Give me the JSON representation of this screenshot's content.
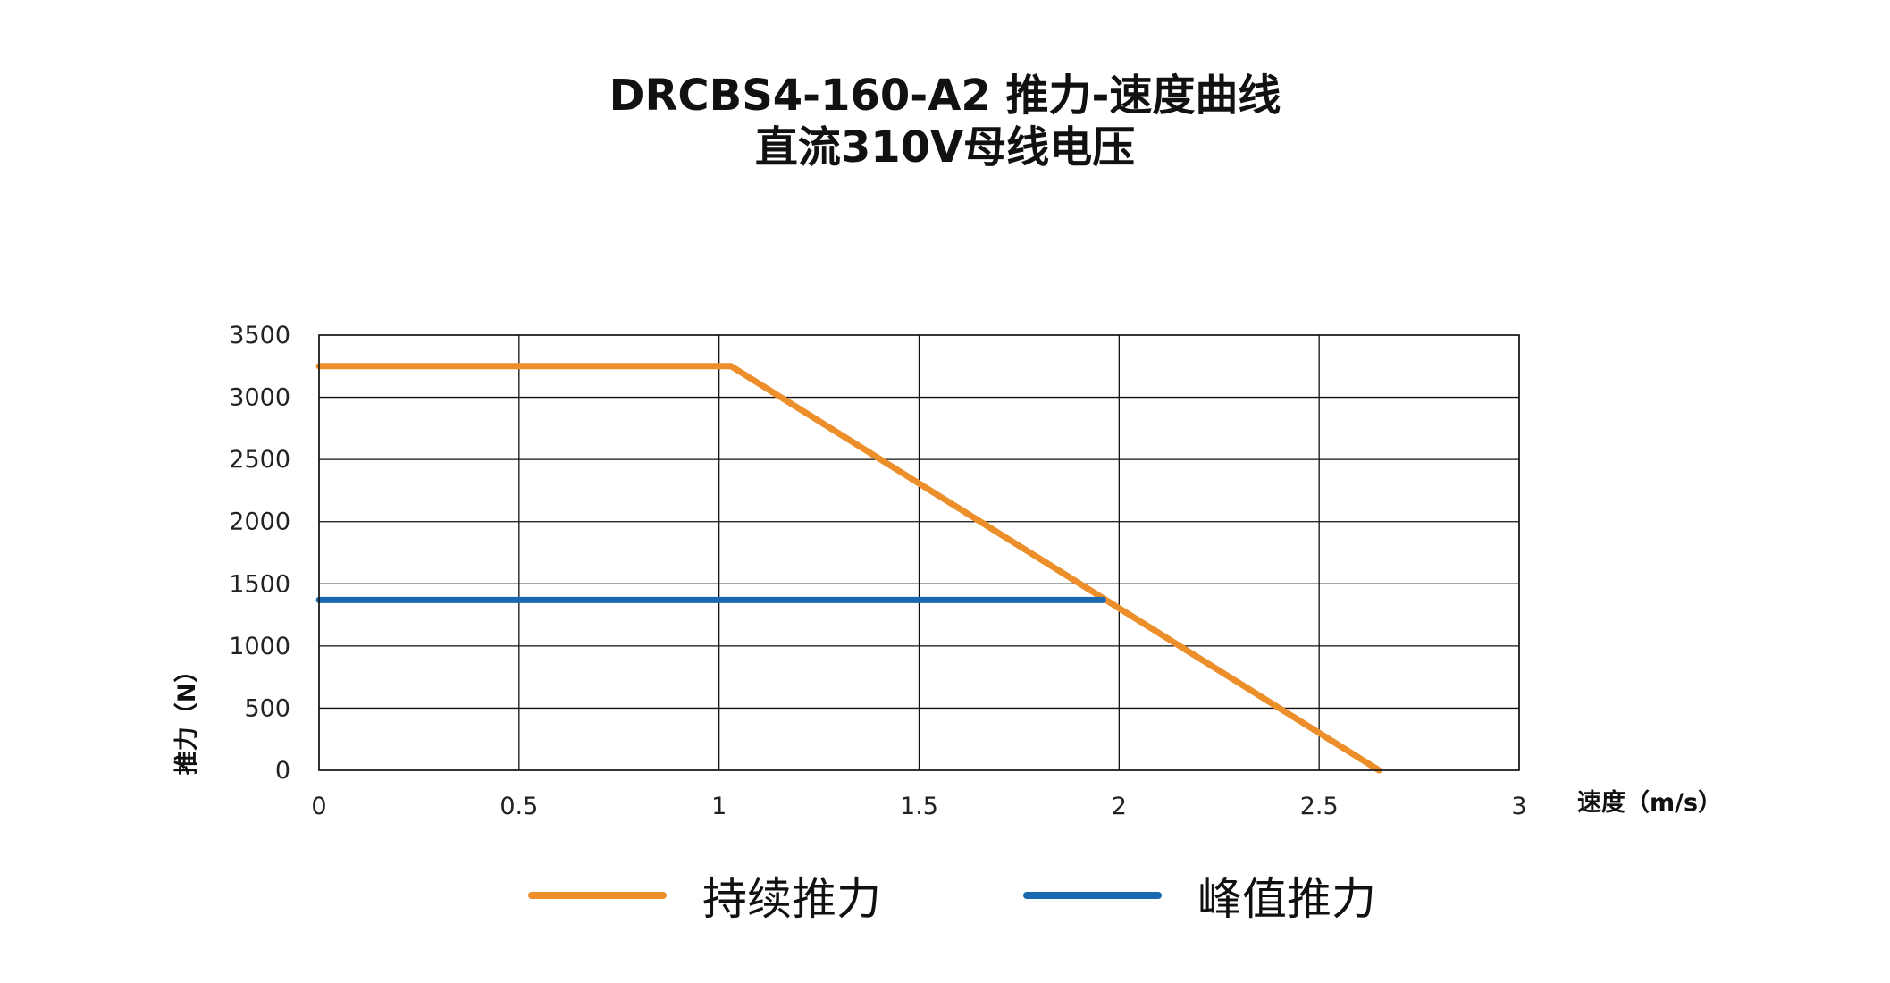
{
  "title": {
    "line1": "DRCBS4-160-A2 推力-速度曲线",
    "line2": "直流310V母线电压"
  },
  "chart_data": {
    "type": "line",
    "xlabel": "速度（m/s）",
    "ylabel": "推力（N）",
    "xlim": [
      0,
      3
    ],
    "ylim": [
      0,
      3500
    ],
    "xticks": [
      0,
      0.5,
      1,
      1.5,
      2,
      2.5,
      3
    ],
    "xtick_labels": [
      "0",
      "0.5",
      "1",
      "1.5",
      "2",
      "2.5",
      "3"
    ],
    "yticks": [
      0,
      500,
      1000,
      1500,
      2000,
      2500,
      3000,
      3500
    ],
    "ytick_labels": [
      "0",
      "500",
      "1000",
      "1500",
      "2000",
      "2500",
      "3000",
      "3500"
    ],
    "grid": true,
    "legend_position": "bottom",
    "series": [
      {
        "name": "持续推力",
        "color": "#EC8E2A",
        "x": [
          0,
          1.03,
          2.65
        ],
        "y": [
          3250,
          3250,
          0
        ]
      },
      {
        "name": "峰值推力",
        "color": "#1A69B0",
        "x": [
          0,
          1.96
        ],
        "y": [
          1370,
          1370
        ]
      }
    ]
  }
}
